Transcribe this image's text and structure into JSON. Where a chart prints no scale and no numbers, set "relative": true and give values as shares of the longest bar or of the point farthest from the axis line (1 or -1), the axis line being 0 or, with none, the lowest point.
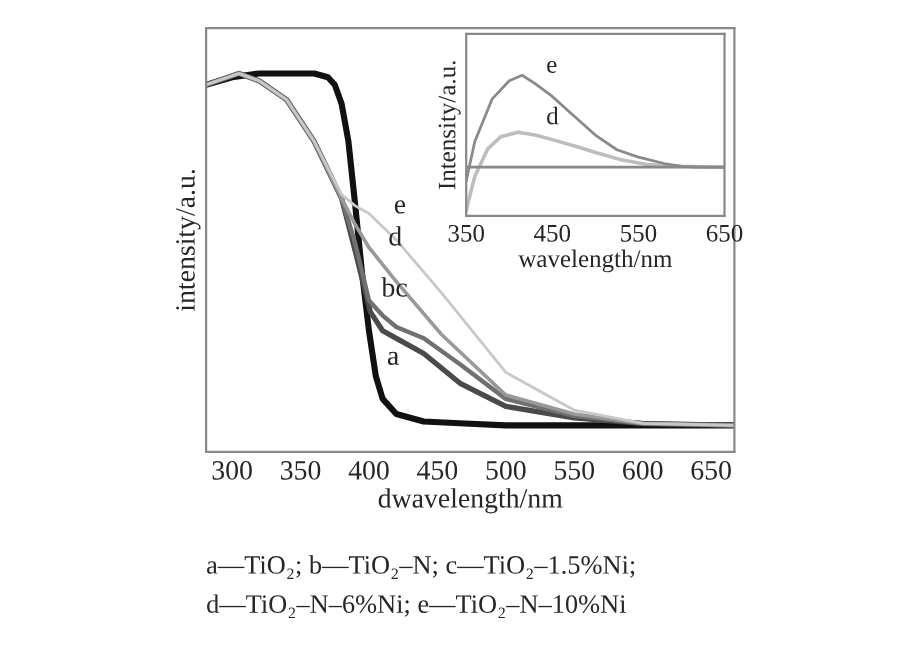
{
  "chart_data": [
    {
      "type": "line",
      "relative": true,
      "xlabel": "dwavelength/nm",
      "ylabel": "intensity/a.u.",
      "xlim": [
        281,
        667
      ],
      "xticks": [
        300,
        350,
        400,
        450,
        500,
        550,
        600,
        650
      ],
      "grid": false,
      "legend": false,
      "marker": "none",
      "line_style": "solid",
      "tick_labels": "x",
      "series": [
        {
          "color": "#111111",
          "x": [
            281,
            300,
            320,
            340,
            360,
            370,
            375,
            380,
            385,
            390,
            395,
            400,
            405,
            410,
            420,
            440,
            470,
            500,
            550,
            600,
            667
          ],
          "values": [
            0.97,
            0.99,
            1.0,
            1.0,
            1.0,
            0.99,
            0.97,
            0.92,
            0.82,
            0.65,
            0.47,
            0.32,
            0.2,
            0.14,
            0.1,
            0.08,
            0.075,
            0.07,
            0.07,
            0.07,
            0.07
          ]
        },
        {
          "color": "#4a4a4a",
          "x": [
            281,
            305,
            320,
            340,
            360,
            380,
            390,
            401,
            410,
            420,
            440,
            467,
            500,
            550,
            600,
            667
          ],
          "values": [
            0.97,
            1.0,
            0.98,
            0.93,
            0.82,
            0.67,
            0.53,
            0.37,
            0.32,
            0.3,
            0.26,
            0.18,
            0.12,
            0.09,
            0.075,
            0.07
          ]
        },
        {
          "color": "#707070",
          "x": [
            281,
            305,
            320,
            340,
            360,
            380,
            390,
            400,
            410,
            420,
            440,
            467,
            500,
            550,
            600,
            667
          ],
          "values": [
            0.97,
            1.0,
            0.98,
            0.93,
            0.82,
            0.67,
            0.55,
            0.4,
            0.36,
            0.33,
            0.3,
            0.23,
            0.14,
            0.095,
            0.075,
            0.07
          ]
        },
        {
          "color": "#999999",
          "x": [
            281,
            305,
            320,
            340,
            360,
            380,
            390,
            400,
            420,
            453,
            500,
            550,
            600,
            667
          ],
          "values": [
            0.97,
            1.0,
            0.98,
            0.93,
            0.82,
            0.67,
            0.6,
            0.54,
            0.45,
            0.31,
            0.15,
            0.1,
            0.075,
            0.07
          ]
        },
        {
          "color": "#c8c8c8",
          "x": [
            281,
            305,
            320,
            340,
            360,
            380,
            390,
            400,
            420,
            453,
            500,
            550,
            600,
            667
          ],
          "values": [
            0.97,
            1.0,
            0.98,
            0.93,
            0.82,
            0.68,
            0.65,
            0.63,
            0.56,
            0.42,
            0.21,
            0.11,
            0.075,
            0.07
          ]
        }
      ],
      "annotations": [
        {
          "text": "e",
          "x": 410,
          "y": 0.6
        },
        {
          "text": "d",
          "x": 406,
          "y": 0.515
        },
        {
          "text": "bc",
          "x": 401,
          "y": 0.38
        },
        {
          "text": "a",
          "x": 405,
          "y": 0.2
        },
        "a—TiO₂; b—TiO₂–N; c—TiO₂–1.5%Ni;",
        "d—TiO₂–N–6%Ni; e—TiO₂–N–10%Ni"
      ]
    },
    {
      "type": "line",
      "relative": true,
      "xlabel": "wavelength/nm",
      "ylabel": "Intensity/a.u.",
      "xlim": [
        350,
        650
      ],
      "xticks": [
        350,
        450,
        550,
        650
      ],
      "grid": false,
      "legend": false,
      "marker": "none",
      "line_style": "solid",
      "tick_labels": "x",
      "series": [
        {
          "color": "#bdbdbd",
          "x": [
            350,
            360,
            375,
            390,
            410,
            430,
            450,
            480,
            500,
            530,
            560,
            600,
            650
          ],
          "values": [
            -0.47,
            -0.1,
            0.2,
            0.33,
            0.38,
            0.35,
            0.3,
            0.22,
            0.16,
            0.08,
            0.03,
            0.01,
            0.0
          ]
        },
        {
          "color": "#8a8a8a",
          "x": [
            350,
            360,
            380,
            400,
            415,
            430,
            450,
            470,
            500,
            525,
            550,
            580,
            600,
            620,
            650
          ],
          "values": [
            -0.15,
            0.28,
            0.74,
            0.94,
            1.0,
            0.91,
            0.77,
            0.6,
            0.35,
            0.19,
            0.11,
            0.04,
            0.01,
            0.0,
            0.0
          ]
        }
      ],
      "annotations": [
        {
          "text": "e",
          "x": 430,
          "y": 0.91
        },
        {
          "text": "d",
          "x": 430,
          "y": 0.35
        }
      ]
    }
  ]
}
